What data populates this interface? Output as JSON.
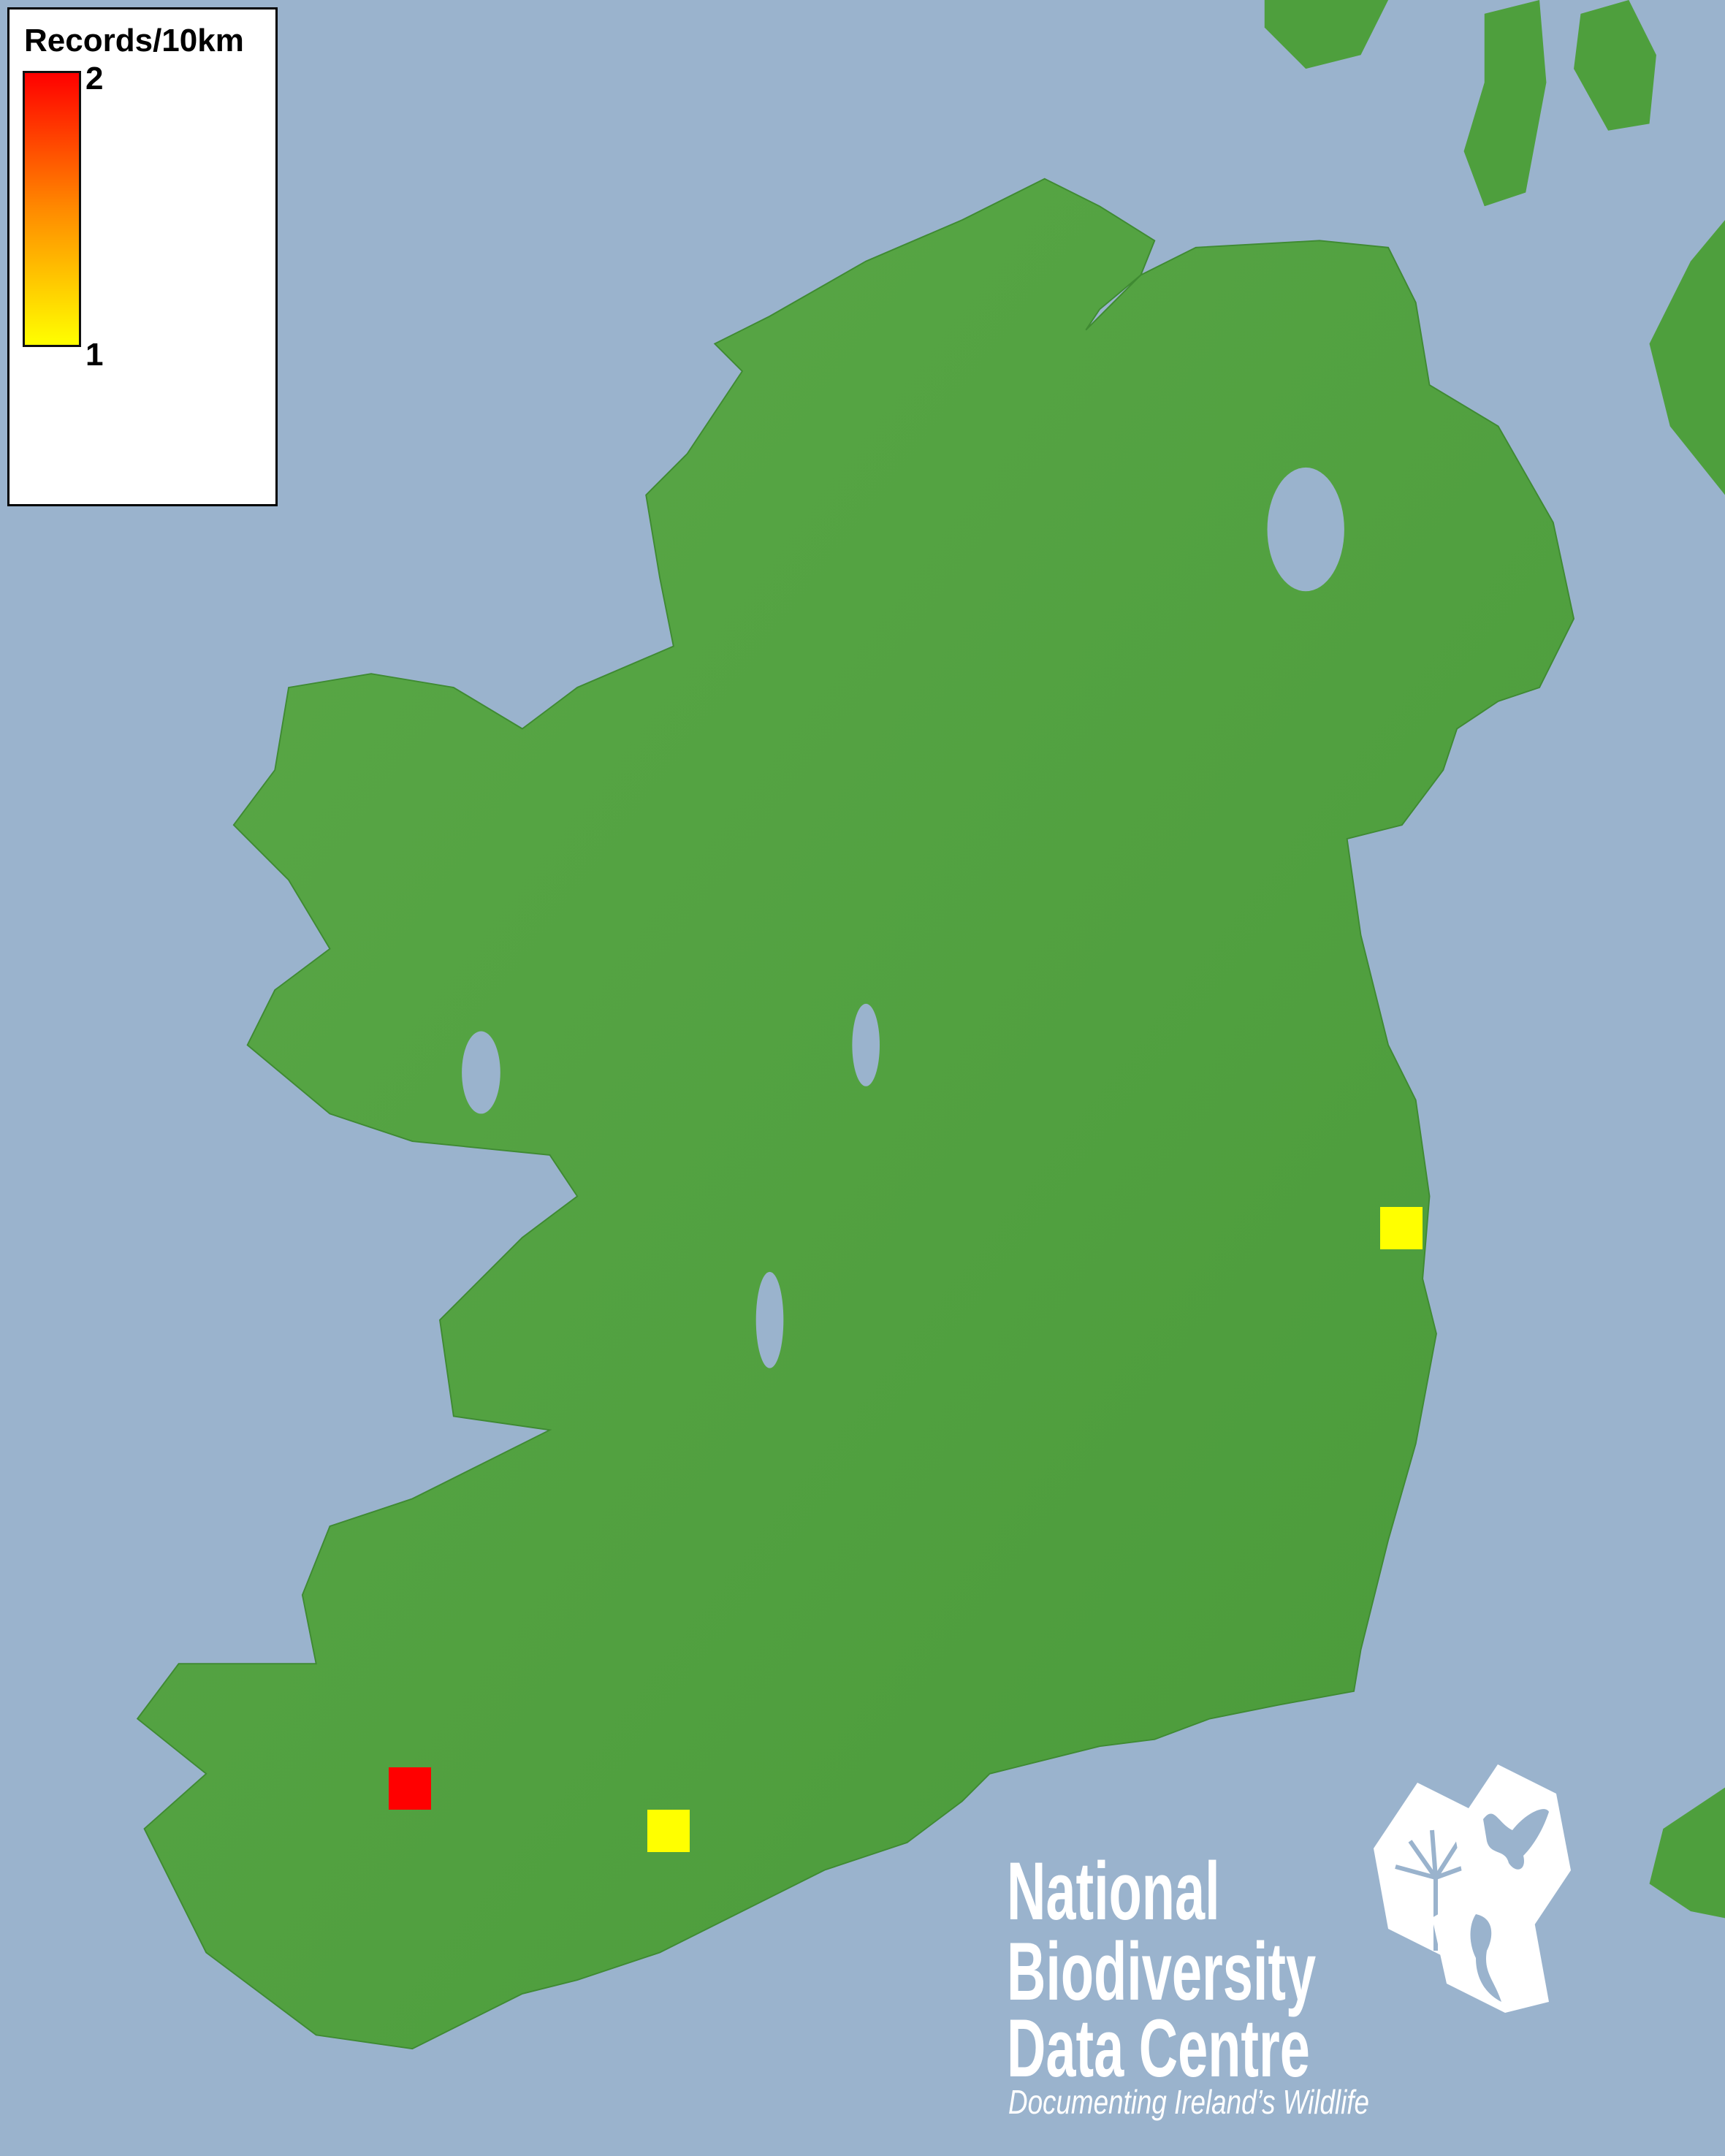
{
  "legend": {
    "title": "Records/10km",
    "max_label": "2",
    "min_label": "1",
    "color_max": "#ff0000",
    "color_min": "#ffff00"
  },
  "records": [
    {
      "count": 1,
      "color": "#ffff00",
      "location": "east coast, Wicklow"
    },
    {
      "count": 2,
      "color": "#ff0000",
      "location": "Kerry"
    },
    {
      "count": 1,
      "color": "#ffff00",
      "location": "Cork"
    }
  ],
  "colors": {
    "sea": "#9ab3cd",
    "land": "#4e9f3d"
  },
  "logo": {
    "line1": "National",
    "line2": "Biodiversity",
    "line3": "Data Centre",
    "tagline": "Documenting Ireland’s Wildlife",
    "icons": [
      "tree-icon",
      "butterfly-icon",
      "seahorse-icon"
    ]
  }
}
